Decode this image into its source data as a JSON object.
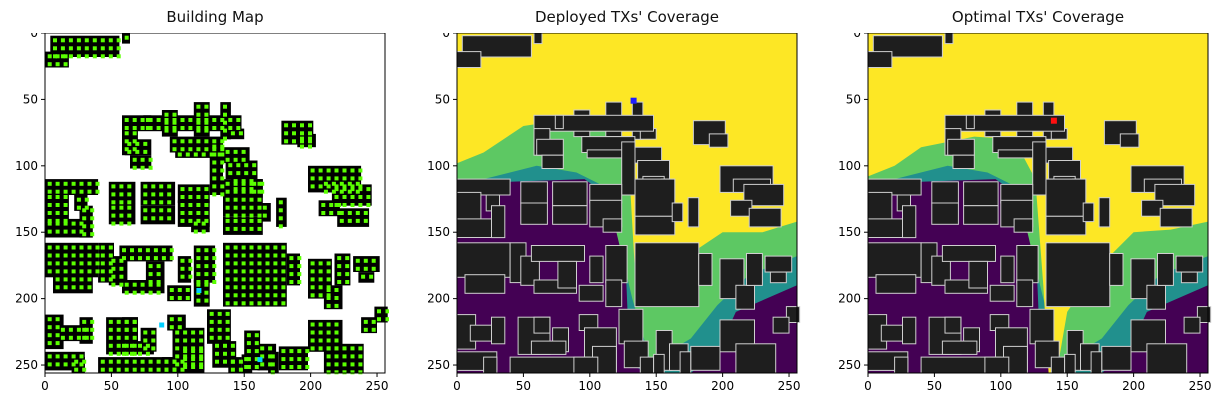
{
  "figure": {
    "panels": [
      {
        "id": "building-map",
        "title": "Building Map",
        "kind": "building-map"
      },
      {
        "id": "deployed-coverage",
        "title": "Deployed TXs' Coverage",
        "kind": "coverage",
        "tx_color": "#1f1fff"
      },
      {
        "id": "optimal-coverage",
        "title": "Optimal TXs' Coverage",
        "kind": "coverage",
        "tx_color": "#ff1010"
      }
    ]
  },
  "chart_data": [
    {
      "type": "heatmap",
      "title": "Building Map",
      "xlim": [
        0,
        256
      ],
      "ylim": [
        256,
        0
      ],
      "xticks": [
        0,
        50,
        100,
        150,
        200,
        250
      ],
      "yticks": [
        0,
        50,
        100,
        150,
        200,
        250
      ],
      "grid": false,
      "colors": {
        "background": "#ffffff",
        "building": "#000000",
        "marker": "#5aff00",
        "marker_alt": "#00d0ff"
      }
    },
    {
      "type": "heatmap",
      "title": "Deployed TXs' Coverage",
      "xlim": [
        0,
        256
      ],
      "ylim": [
        256,
        0
      ],
      "xticks": [
        0,
        50,
        100,
        150,
        200,
        250
      ],
      "yticks": [
        0,
        50,
        100,
        150,
        200,
        250
      ],
      "grid": false,
      "colormap": [
        "#440154",
        "#21908d",
        "#5dc863",
        "#fde725"
      ],
      "tx_position": [
        133,
        51
      ]
    },
    {
      "type": "heatmap",
      "title": "Optimal TXs' Coverage",
      "xlim": [
        0,
        256
      ],
      "ylim": [
        256,
        0
      ],
      "xticks": [
        0,
        50,
        100,
        150,
        200,
        250
      ],
      "yticks": [
        0,
        50,
        100,
        150,
        200,
        250
      ],
      "grid": false,
      "colormap": [
        "#440154",
        "#21908d",
        "#5dc863",
        "#fde725"
      ],
      "tx_position": [
        140,
        66
      ]
    }
  ]
}
